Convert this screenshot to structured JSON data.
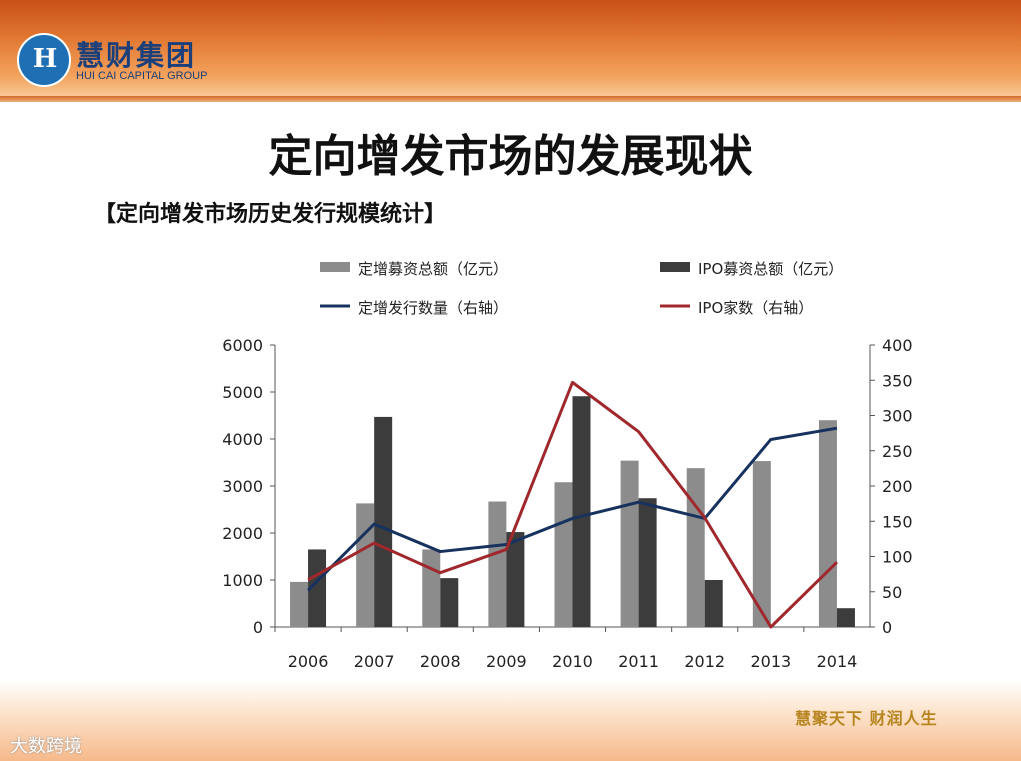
{
  "header": {
    "logo_mark": "H",
    "logo_cn": "慧财集团",
    "logo_en": "HUI CAI CAPITAL GROUP"
  },
  "slide_title": "定向增发市场的发展现状",
  "subtitle": "【定向增发市场历史发行规模统计】",
  "footer": {
    "watermark": "大数跨境",
    "slogan": "慧聚天下 财润人生"
  },
  "colors": {
    "bar_private": "#8c8c8c",
    "bar_ipo": "#3c3c3c",
    "line_private_count": "#17325e",
    "line_ipo_count": "#a0282d"
  },
  "chart_data": {
    "type": "bar",
    "categories": [
      "2006",
      "2007",
      "2008",
      "2009",
      "2010",
      "2011",
      "2012",
      "2013",
      "2014"
    ],
    "ylim": [
      0,
      6000
    ],
    "y_ticks": [
      "0",
      "1000",
      "2000",
      "3000",
      "4000",
      "5000",
      "6000"
    ],
    "y2lim": [
      0,
      400
    ],
    "y2_ticks": [
      "0",
      "50",
      "100",
      "150",
      "200",
      "250",
      "300",
      "350",
      "400"
    ],
    "legend_position": "top",
    "grid": false,
    "series": [
      {
        "name": "定增募资总额（亿元）",
        "type": "bar",
        "axis": "left",
        "values": [
          960,
          2630,
          1650,
          2670,
          3080,
          3540,
          3380,
          3530,
          4400
        ]
      },
      {
        "name": "IPO募资总额（亿元）",
        "type": "bar",
        "axis": "left",
        "values": [
          1650,
          4470,
          1040,
          2020,
          4910,
          2740,
          1000,
          0,
          400
        ]
      },
      {
        "name": "定增发行数量（右轴）",
        "type": "line",
        "axis": "right",
        "values": [
          52,
          146,
          107,
          117,
          154,
          177,
          154,
          266,
          282
        ]
      },
      {
        "name": "IPO家数（右轴）",
        "type": "line",
        "axis": "right",
        "values": [
          67,
          119,
          77,
          110,
          347,
          277,
          155,
          0,
          92
        ]
      }
    ]
  }
}
